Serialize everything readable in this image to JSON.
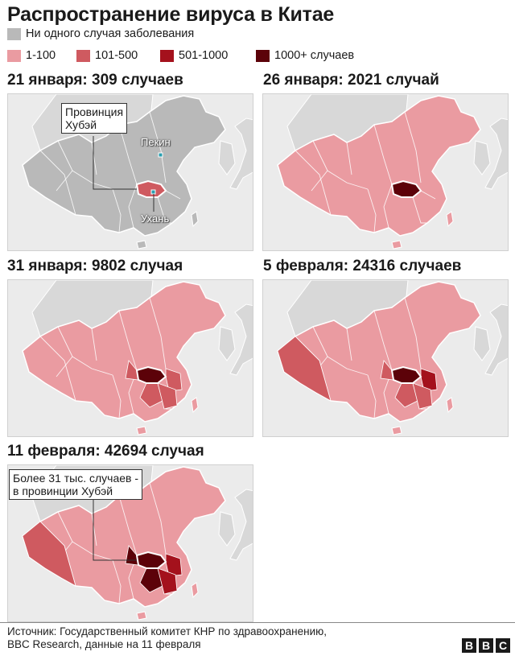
{
  "title": "Распространение вируса в Китае",
  "legend": [
    {
      "label": "Ни одного случая заболевания",
      "color": "#b9b9b9"
    },
    {
      "label": "1-100",
      "color": "#ea9ba1"
    },
    {
      "label": "101-500",
      "color": "#cf5a60"
    },
    {
      "label": "501-1000",
      "color": "#a4111c"
    },
    {
      "label": "1000+ случаев",
      "color": "#5c0209"
    }
  ],
  "panels": [
    {
      "title": "21 января: 309 случаев",
      "base_color": "#b9b9b9",
      "hubei_color": "#cf5a60",
      "callout": "Провинция\nХубэй",
      "cities": [
        "Пекин",
        "Ухань"
      ]
    },
    {
      "title": "26 января: 2021 случай",
      "base_color": "#ea9ba1",
      "hubei_color": "#5c0209"
    },
    {
      "title": "31 января: 9802 случая",
      "base_color": "#ea9ba1",
      "hubei_color": "#5c0209"
    },
    {
      "title": "5 февраля: 24316 случаев",
      "base_color": "#ea9ba1",
      "hubei_color": "#5c0209"
    },
    {
      "title": "11 февраля: 42694 случая",
      "base_color": "#ea9ba1",
      "hubei_color": "#5c0209",
      "callout": "Более 31 тыс. случаев -\nв провинции Хубэй"
    }
  ],
  "source": {
    "line1": "Источник: Государственный комитет КНР по здравоохранению,",
    "line2": "BBC Research, данные на 11 февраля"
  },
  "logo": [
    "B",
    "B",
    "C"
  ]
}
